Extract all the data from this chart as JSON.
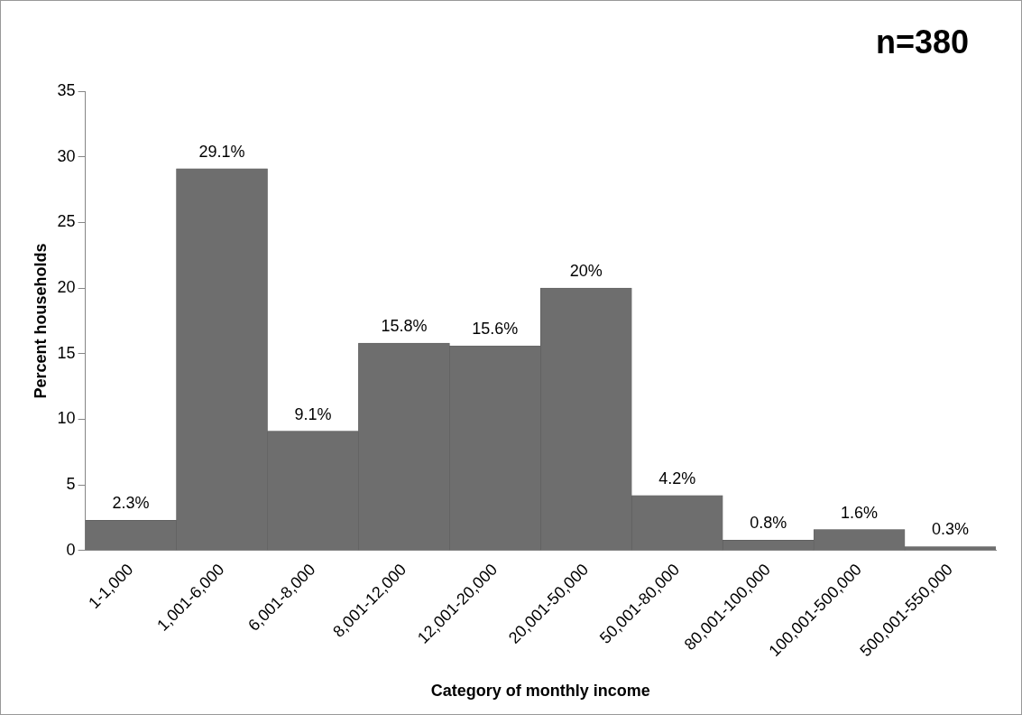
{
  "chart_data": {
    "type": "bar",
    "xlabel": "Category of monthly income",
    "ylabel": "Percent households",
    "annotations": [
      "n=380"
    ],
    "categories": [
      "1-1,000",
      "1,001-6,000",
      "6,001-8,000",
      "8,001-12,000",
      "12,001-20,000",
      "20,001-50,000",
      "50,001-80,000",
      "80,001-100,000",
      "100,001-500,000",
      "500,001-550,000"
    ],
    "values": [
      2.3,
      29.1,
      9.1,
      15.8,
      15.6,
      20,
      4.2,
      0.8,
      1.6,
      0.3
    ],
    "value_labels": [
      "2.3%",
      "29.1%",
      "9.1%",
      "15.8%",
      "15.6%",
      "20%",
      "4.2%",
      "0.8%",
      "1.6%",
      "0.3%"
    ],
    "color": "#6e6e6e",
    "ylim": [
      0,
      35
    ],
    "yticks": [
      0,
      5,
      10,
      15,
      20,
      25,
      30,
      35
    ],
    "grid": false,
    "legend": false
  }
}
